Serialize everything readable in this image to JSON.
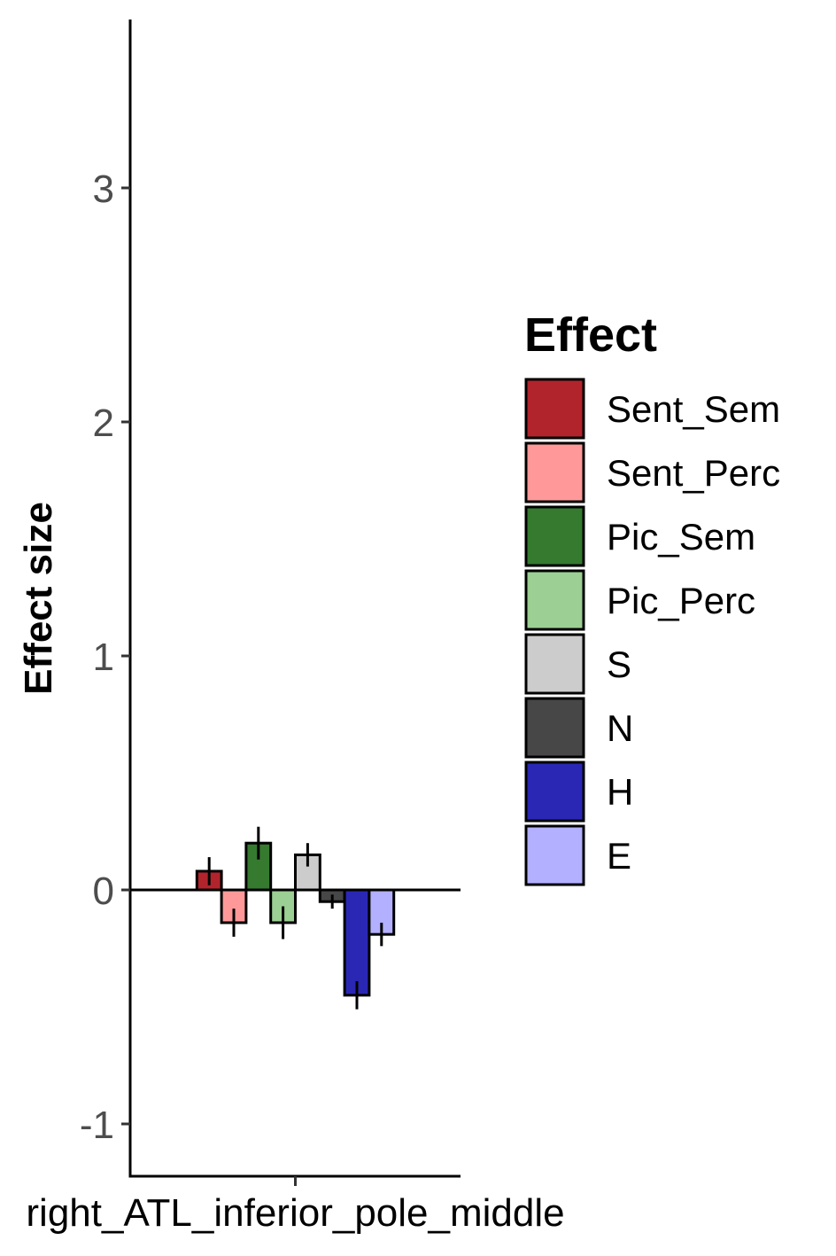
{
  "chart_data": {
    "type": "bar",
    "categories": [
      "right_ATL_inferior_pole_middle"
    ],
    "series": [
      {
        "name": "Sent_Sem",
        "value": 0.08,
        "error": 0.06,
        "color": "#b2242c"
      },
      {
        "name": "Sent_Perc",
        "value": -0.14,
        "error": 0.06,
        "color": "#ff9999"
      },
      {
        "name": "Pic_Sem",
        "value": 0.2,
        "error": 0.07,
        "color": "#357a2f"
      },
      {
        "name": "Pic_Perc",
        "value": -0.14,
        "error": 0.07,
        "color": "#9ccf93"
      },
      {
        "name": "S",
        "value": 0.15,
        "error": 0.05,
        "color": "#cccccc"
      },
      {
        "name": "N",
        "value": -0.05,
        "error": 0.03,
        "color": "#474747"
      },
      {
        "name": "H",
        "value": -0.45,
        "error": 0.06,
        "color": "#2a27b5"
      },
      {
        "name": "E",
        "value": -0.19,
        "error": 0.05,
        "color": "#b3b0ff"
      }
    ],
    "xlabel": "",
    "ylabel": "Effect size",
    "ylim": [
      -1.22,
      3.7
    ],
    "yticks": [
      -1,
      0,
      1,
      2,
      3
    ],
    "ytick_labels": [
      "-1",
      "0",
      "1",
      "2",
      "3"
    ],
    "legend_title": "Effect",
    "legend_position": "right",
    "grid": false
  }
}
